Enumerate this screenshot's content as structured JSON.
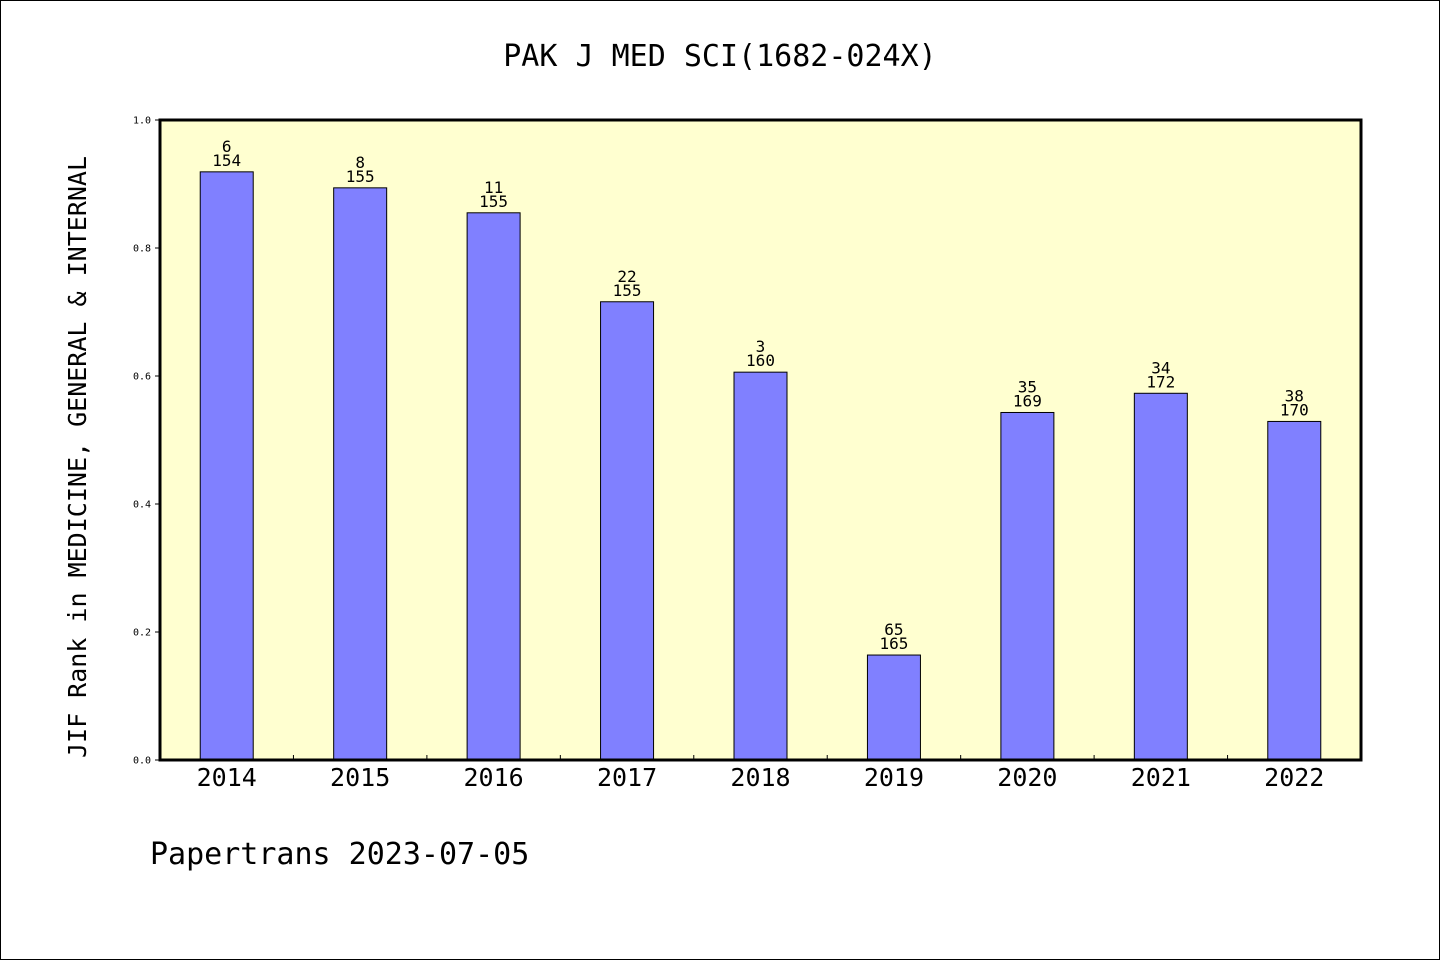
{
  "chart_data": {
    "type": "bar",
    "title": "PAK J MED SCI(1682-024X)",
    "ylabel": "JIF Rank in MEDICINE, GENERAL & INTERNAL",
    "xlabel": "",
    "ylim": [
      0,
      1.0
    ],
    "y_ticks": [
      "0.0",
      "0.2",
      "0.4",
      "0.6",
      "0.8",
      "1.0"
    ],
    "grid": false,
    "categories": [
      "2014",
      "2015",
      "2016",
      "2017",
      "2018",
      "2019",
      "2020",
      "2021",
      "2022"
    ],
    "values": [
      0.919,
      0.894,
      0.855,
      0.716,
      0.606,
      0.164,
      0.543,
      0.573,
      0.529
    ],
    "ranks": [
      "6",
      "8",
      "11",
      "22",
      "3",
      "65",
      "35",
      "34",
      "38"
    ],
    "totals": [
      "154",
      "155",
      "155",
      "155",
      "160",
      "165",
      "169",
      "172",
      "170"
    ],
    "colors": {
      "bar": "#8080ff",
      "plot_background": "#ffffd0",
      "bar_edge": "#000000"
    }
  },
  "footer": {
    "text": "Papertrans 2023-07-05"
  }
}
